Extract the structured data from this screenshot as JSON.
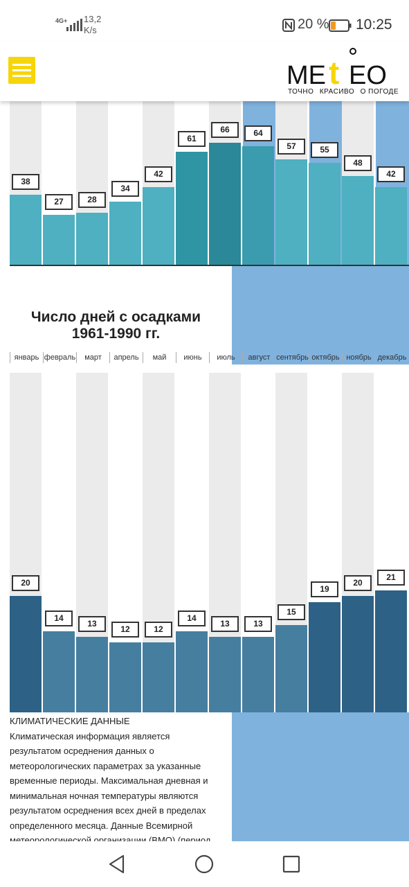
{
  "status_bar": {
    "network": "4G+",
    "speed_value": "13,2",
    "speed_unit": "K/s",
    "battery_percent": "20 %",
    "time": "10:25",
    "icons": [
      "signal-icon",
      "nfc-icon",
      "battery-icon"
    ]
  },
  "header": {
    "logo_text": "METEO",
    "tagline": [
      "ТОЧНО",
      "КРАСИВО",
      "О ПОГОДЕ"
    ],
    "accent_color": "#f6d50a",
    "icons": [
      "menu-icon"
    ]
  },
  "precipitation_chart": {
    "chart_data": {
      "type": "bar",
      "categories": [
        "январь",
        "февраль",
        "март",
        "апрель",
        "май",
        "июнь",
        "июль",
        "август",
        "сентябрь",
        "октябрь",
        "ноябрь",
        "декабрь"
      ],
      "values": [
        38,
        27,
        28,
        34,
        42,
        61,
        66,
        64,
        57,
        55,
        48,
        42
      ],
      "bar_colors": [
        "#4eb0c0",
        "#4eb0c0",
        "#4eb0c0",
        "#4eb0c0",
        "#4eb0c0",
        "#2f95a5",
        "#2a8898",
        "#3a9cae",
        "#4eb0c0",
        "#4eb0c0",
        "#4eb0c0",
        "#4eb0c0"
      ]
    }
  },
  "rain_days_chart": {
    "title_line1": "Число дней с осадками",
    "title_line2": "1961-1990 гг.",
    "months": [
      "январь",
      "февраль",
      "март",
      "апрель",
      "май",
      "июнь",
      "июль",
      "август",
      "сентябрь",
      "октябрь",
      "ноябрь",
      "декабрь"
    ],
    "chart_data": {
      "type": "bar",
      "categories": [
        "январь",
        "февраль",
        "март",
        "апрель",
        "май",
        "июнь",
        "июль",
        "август",
        "сентябрь",
        "октябрь",
        "ноябрь",
        "декабрь"
      ],
      "values": [
        20,
        14,
        13,
        12,
        12,
        14,
        13,
        13,
        15,
        19,
        20,
        21
      ],
      "bar_colors": [
        "#2d6185",
        "#467ea0",
        "#467ea0",
        "#467ea0",
        "#467ea0",
        "#467ea0",
        "#467ea0",
        "#467ea0",
        "#467ea0",
        "#2d6185",
        "#2d6185",
        "#2d6185"
      ]
    }
  },
  "climate_info": {
    "heading": "КЛИМАТИЧЕСКИЕ ДАННЫЕ",
    "lines": [
      "Климатическая информация является",
      "результатом осреднения данных о",
      "метеорологических параметрах за указанные",
      "временные периоды. Максимальная дневная и",
      "минимальная ночная температуры являются",
      "результатом осреднения всех дней в пределах",
      "определенного месяца. Данные Всемирной",
      "метеорологической организации (ВМО) (период"
    ]
  },
  "nav_bar": {
    "icons": [
      "back-icon",
      "home-icon",
      "recents-icon"
    ]
  },
  "colors": {
    "highlight_band": "#80b2de",
    "column_light": "#ebebeb",
    "column_white": "#ffffff"
  }
}
